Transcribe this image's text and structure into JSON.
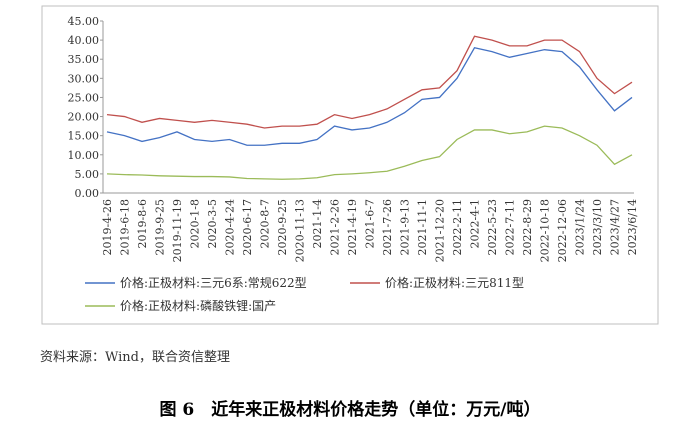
{
  "chart_data": {
    "type": "line",
    "title": "图 6　近年来正极材料价格走势（单位：万元/吨）",
    "source": "资料来源：Wind，联合资信整理",
    "categories": [
      "2019-4-26",
      "2019-6-18",
      "2019-8-6",
      "2019-9-25",
      "2019-11-19",
      "2020-1-8",
      "2020-3-5",
      "2020-4-24",
      "2020-6-17",
      "2020-8-7",
      "2020-9-25",
      "2020-11-13",
      "2021-1-4",
      "2021-2-26",
      "2021-4-19",
      "2021-6-7",
      "2021-7-26",
      "2021-9-13",
      "2021-11-1",
      "2021-12-20",
      "2022-2-11",
      "2022-4-1",
      "2022-5-23",
      "2022-7-11",
      "2022-8-29",
      "2022-10-18",
      "2022-12-06",
      "2023/1/24",
      "2023/3/10",
      "2023/4/27",
      "2023/6/14"
    ],
    "series": [
      {
        "name": "价格:正极材料:三元6系:常规622型",
        "color": "#4472c4",
        "values": [
          16,
          15,
          13.5,
          14.5,
          16,
          14,
          13.5,
          14,
          12.5,
          12.5,
          13,
          13,
          14,
          17.5,
          16.5,
          17,
          18.5,
          21,
          24.5,
          25,
          30,
          38,
          37,
          35.5,
          36.5,
          37.5,
          37,
          33,
          27,
          21.5,
          25
        ]
      },
      {
        "name": "价格:正极材料:三元811型",
        "color": "#c0504d",
        "values": [
          20.5,
          20,
          18.5,
          19.5,
          19,
          18.5,
          19,
          18.5,
          18,
          17,
          17.5,
          17.5,
          18,
          20.5,
          19.5,
          20.5,
          22,
          24.5,
          27,
          27.5,
          32,
          41,
          40,
          38.5,
          38.5,
          40,
          40,
          37,
          30,
          26,
          29
        ]
      },
      {
        "name": "价格:正极材料:磷酸铁锂:国产",
        "color": "#9bbb59",
        "values": [
          5,
          4.8,
          4.7,
          4.5,
          4.4,
          4.3,
          4.3,
          4.2,
          3.8,
          3.7,
          3.6,
          3.7,
          4,
          4.8,
          5,
          5.3,
          5.7,
          7,
          8.5,
          9.5,
          14,
          16.5,
          16.5,
          15.5,
          16,
          17.5,
          17,
          15,
          12.5,
          7.5,
          10
        ]
      }
    ],
    "ylim": [
      0,
      45
    ],
    "yticks": [
      {
        "value": 0,
        "label": "0.00"
      },
      {
        "value": 5,
        "label": "5.00"
      },
      {
        "value": 10,
        "label": "10.00"
      },
      {
        "value": 15,
        "label": "15.00"
      },
      {
        "value": 20,
        "label": "20.00"
      },
      {
        "value": 25,
        "label": "25.00"
      },
      {
        "value": 30,
        "label": "30.00"
      },
      {
        "value": 35,
        "label": "35.00"
      },
      {
        "value": 40,
        "label": "40.00"
      },
      {
        "value": 45,
        "label": "45.00"
      }
    ]
  }
}
